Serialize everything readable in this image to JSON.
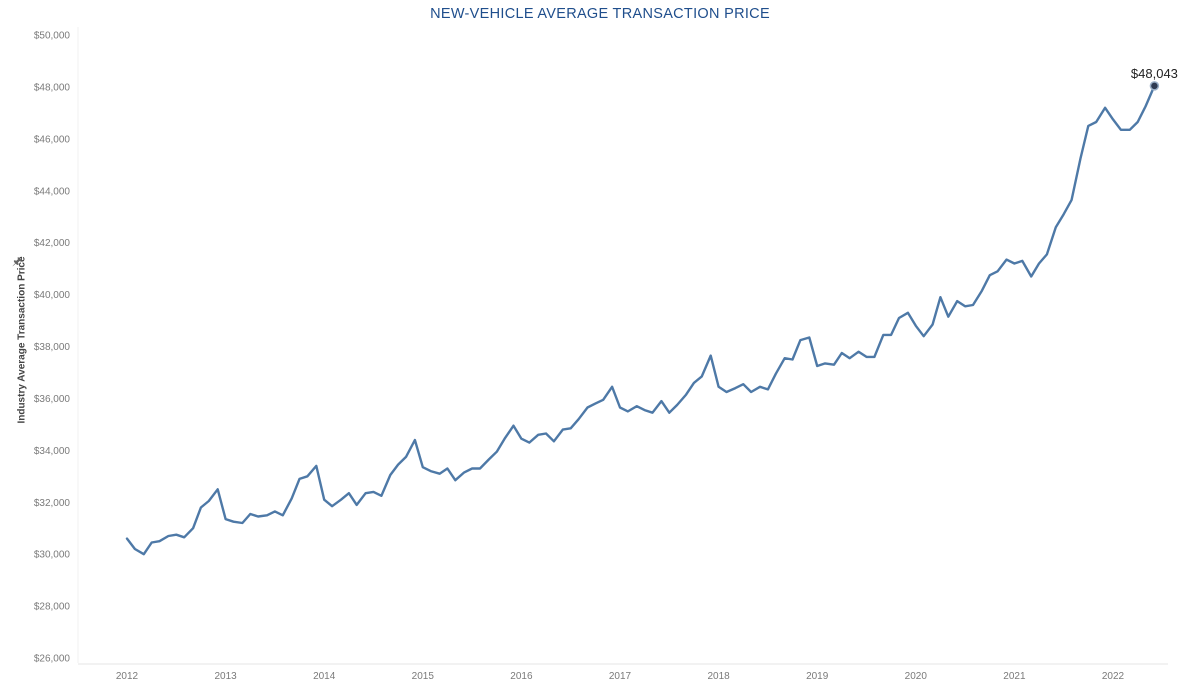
{
  "chart_data": {
    "type": "line",
    "title": "NEW-VEHICLE AVERAGE TRANSACTION PRICE",
    "ylabel": "Industry Average Transaction Price",
    "xlabel": "",
    "ylim": [
      26000,
      50000
    ],
    "xlim": [
      2011.7,
      2022.8
    ],
    "y_ticks": [
      {
        "value": 26000,
        "label": "$26,000"
      },
      {
        "value": 28000,
        "label": "$28,000"
      },
      {
        "value": 30000,
        "label": "$30,000"
      },
      {
        "value": 32000,
        "label": "$32,000"
      },
      {
        "value": 34000,
        "label": "$34,000"
      },
      {
        "value": 36000,
        "label": "$36,000"
      },
      {
        "value": 38000,
        "label": "$38,000"
      },
      {
        "value": 40000,
        "label": "$40,000"
      },
      {
        "value": 42000,
        "label": "$42,000"
      },
      {
        "value": 44000,
        "label": "$44,000"
      },
      {
        "value": 46000,
        "label": "$46,000"
      },
      {
        "value": 48000,
        "label": "$48,000"
      },
      {
        "value": 50000,
        "label": "$50,000"
      }
    ],
    "x_ticks": [
      {
        "value": 2012,
        "label": "2012"
      },
      {
        "value": 2013,
        "label": "2013"
      },
      {
        "value": 2014,
        "label": "2014"
      },
      {
        "value": 2015,
        "label": "2015"
      },
      {
        "value": 2016,
        "label": "2016"
      },
      {
        "value": 2017,
        "label": "2017"
      },
      {
        "value": 2018,
        "label": "2018"
      },
      {
        "value": 2019,
        "label": "2019"
      },
      {
        "value": 2020,
        "label": "2020"
      },
      {
        "value": 2021,
        "label": "2021"
      },
      {
        "value": 2022,
        "label": "2022"
      }
    ],
    "grid": false,
    "line_color": "#4e79a7",
    "marker_color": "#2f3b52",
    "end_label": "$48,043",
    "series": [
      {
        "x": [
          2012.0,
          2012.08,
          2012.17,
          2012.25,
          2012.33,
          2012.42,
          2012.5,
          2012.58,
          2012.67,
          2012.75,
          2012.83,
          2012.92,
          2013.0,
          2013.08,
          2013.17,
          2013.25,
          2013.33,
          2013.42,
          2013.5,
          2013.58,
          2013.67,
          2013.75,
          2013.83,
          2013.92,
          2014.0,
          2014.08,
          2014.17,
          2014.25,
          2014.33,
          2014.42,
          2014.5,
          2014.58,
          2014.67,
          2014.75,
          2014.83,
          2014.92,
          2015.0,
          2015.08,
          2015.17,
          2015.25,
          2015.33,
          2015.42,
          2015.5,
          2015.58,
          2015.67,
          2015.75,
          2015.83,
          2015.92,
          2016.0,
          2016.08,
          2016.17,
          2016.25,
          2016.33,
          2016.42,
          2016.5,
          2016.58,
          2016.67,
          2016.75,
          2016.83,
          2016.92,
          2017.0,
          2017.08,
          2017.17,
          2017.25,
          2017.33,
          2017.42,
          2017.5,
          2017.58,
          2017.67,
          2017.75,
          2017.83,
          2017.92,
          2018.0,
          2018.08,
          2018.17,
          2018.25,
          2018.33,
          2018.42,
          2018.5,
          2018.58,
          2018.67,
          2018.75,
          2018.83,
          2018.92,
          2019.0,
          2019.08,
          2019.17,
          2019.25,
          2019.33,
          2019.42,
          2019.5,
          2019.58,
          2019.67,
          2019.75,
          2019.83,
          2019.92,
          2020.0,
          2020.08,
          2020.17,
          2020.25,
          2020.33,
          2020.42,
          2020.5,
          2020.58,
          2020.67,
          2020.75,
          2020.83,
          2020.92,
          2021.0,
          2021.08,
          2021.17,
          2021.25,
          2021.33,
          2021.42,
          2021.5,
          2021.58,
          2021.67,
          2021.75,
          2021.83,
          2021.92,
          2022.0,
          2022.08,
          2022.17,
          2022.25,
          2022.33,
          2022.42
        ],
        "values": [
          30600,
          30200,
          30000,
          30450,
          30500,
          30700,
          30750,
          30650,
          31000,
          31800,
          32050,
          32500,
          31350,
          31250,
          31200,
          31550,
          31450,
          31500,
          31650,
          31500,
          32150,
          32900,
          33000,
          33400,
          32100,
          31850,
          32100,
          32350,
          31900,
          32350,
          32400,
          32250,
          33050,
          33450,
          33750,
          34400,
          33350,
          33200,
          33100,
          33300,
          32850,
          33150,
          33300,
          33300,
          33650,
          33950,
          34450,
          34950,
          34450,
          34300,
          34600,
          34650,
          34350,
          34800,
          34850,
          35200,
          35650,
          35800,
          35950,
          36450,
          35650,
          35500,
          35700,
          35550,
          35450,
          35900,
          35450,
          35750,
          36150,
          36600,
          36850,
          37650,
          36450,
          36250,
          36400,
          36550,
          36250,
          36450,
          36350,
          36950,
          37550,
          37500,
          38250,
          38350,
          37250,
          37350,
          37300,
          37750,
          37550,
          37800,
          37600,
          37600,
          38450,
          38450,
          39100,
          39300,
          38800,
          38400,
          38850,
          39900,
          39150,
          39750,
          39550,
          39600,
          40150,
          40750,
          40900,
          41350,
          41200,
          41300,
          40700,
          41200,
          41550,
          42600,
          43100,
          43650,
          45250,
          46500,
          46650,
          47200,
          46750,
          46350,
          46350,
          46650,
          47250,
          48043
        ]
      }
    ]
  }
}
